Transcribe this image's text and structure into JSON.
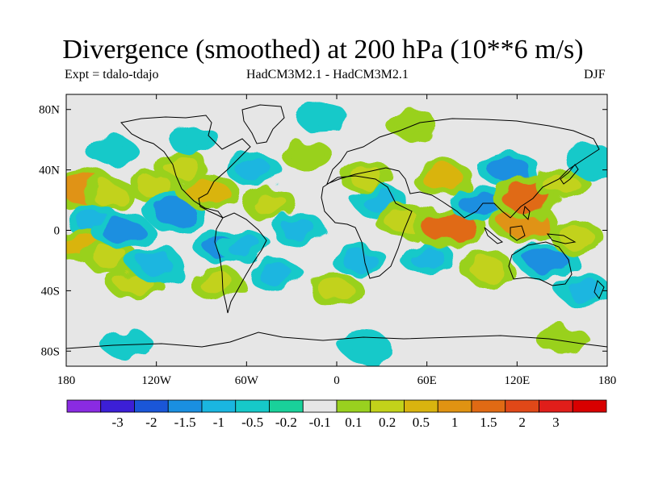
{
  "title": "Divergence (smoothed) at 200 hPa (10**6 m/s)",
  "subtitle_left": "Expt = tdalo-tdajo",
  "subtitle_center": "HadCM3M2.1 - HadCM3M2.1",
  "subtitle_right": "DJF",
  "map": {
    "projection": "cylindrical equidistant",
    "lon_range": [
      -180,
      180
    ],
    "lat_range": [
      -90,
      90
    ],
    "background_color": "#e6e6e6",
    "lat_ticks": [
      {
        "value": 80,
        "label": "80N"
      },
      {
        "value": 40,
        "label": "40N"
      },
      {
        "value": 0,
        "label": "0"
      },
      {
        "value": -40,
        "label": "40S"
      },
      {
        "value": -80,
        "label": "80S"
      }
    ],
    "lon_ticks": [
      {
        "value": -180,
        "label": "180"
      },
      {
        "value": -120,
        "label": "120W"
      },
      {
        "value": -60,
        "label": "60W"
      },
      {
        "value": 0,
        "label": "0"
      },
      {
        "value": 60,
        "label": "60E"
      },
      {
        "value": 120,
        "label": "120E"
      },
      {
        "value": 180,
        "label": "180"
      }
    ],
    "fields": [
      {
        "lon": -167,
        "lat": 27,
        "value": 1.5
      },
      {
        "lon": -152,
        "lat": 24,
        "value": 0.5
      },
      {
        "lon": -163,
        "lat": 7,
        "value": -0.5
      },
      {
        "lon": -150,
        "lat": 53,
        "value": -0.2
      },
      {
        "lon": -170,
        "lat": -10,
        "value": 1
      },
      {
        "lon": -150,
        "lat": -18,
        "value": 0.5
      },
      {
        "lon": -143,
        "lat": 0,
        "value": -1
      },
      {
        "lon": -135,
        "lat": -35,
        "value": 0.5
      },
      {
        "lon": -120,
        "lat": -22,
        "value": -0.5
      },
      {
        "lon": -120,
        "lat": 28,
        "value": 0.5
      },
      {
        "lon": -108,
        "lat": 12,
        "value": -1
      },
      {
        "lon": -103,
        "lat": 42,
        "value": 0.5
      },
      {
        "lon": -95,
        "lat": 60,
        "value": -0.2
      },
      {
        "lon": -85,
        "lat": 25,
        "value": 1
      },
      {
        "lon": -75,
        "lat": -10,
        "value": -1
      },
      {
        "lon": -62,
        "lat": -10,
        "value": -0.5
      },
      {
        "lon": -80,
        "lat": -35,
        "value": 0.5
      },
      {
        "lon": -55,
        "lat": 40,
        "value": -0.5
      },
      {
        "lon": -45,
        "lat": 18,
        "value": 0.5
      },
      {
        "lon": -40,
        "lat": -30,
        "value": -0.5
      },
      {
        "lon": -20,
        "lat": 50,
        "value": 0.2
      },
      {
        "lon": -25,
        "lat": 0,
        "value": -0.5
      },
      {
        "lon": 0,
        "lat": -40,
        "value": 0.5
      },
      {
        "lon": 20,
        "lat": 35,
        "value": 0.5
      },
      {
        "lon": 15,
        "lat": -20,
        "value": -0.5
      },
      {
        "lon": 30,
        "lat": 18,
        "value": -0.5
      },
      {
        "lon": 45,
        "lat": 5,
        "value": 0.5
      },
      {
        "lon": 60,
        "lat": -18,
        "value": -0.5
      },
      {
        "lon": 70,
        "lat": 35,
        "value": 1
      },
      {
        "lon": 75,
        "lat": 2,
        "value": 2
      },
      {
        "lon": 95,
        "lat": 18,
        "value": -1
      },
      {
        "lon": 100,
        "lat": -25,
        "value": 0.5
      },
      {
        "lon": 115,
        "lat": 40,
        "value": -1
      },
      {
        "lon": 125,
        "lat": 5,
        "value": 1.5
      },
      {
        "lon": 128,
        "lat": 22,
        "value": 2
      },
      {
        "lon": 140,
        "lat": -20,
        "value": -1
      },
      {
        "lon": 150,
        "lat": 30,
        "value": 0.5
      },
      {
        "lon": 160,
        "lat": -5,
        "value": 0.5
      },
      {
        "lon": 165,
        "lat": -40,
        "value": -0.5
      },
      {
        "lon": 170,
        "lat": 45,
        "value": -0.2
      },
      {
        "lon": -10,
        "lat": 75,
        "value": -0.2
      },
      {
        "lon": 50,
        "lat": 70,
        "value": 0.2
      },
      {
        "lon": -140,
        "lat": -75,
        "value": -0.2
      },
      {
        "lon": 20,
        "lat": -78,
        "value": -0.2
      },
      {
        "lon": 150,
        "lat": -72,
        "value": 0.2
      }
    ]
  },
  "colorbar": {
    "colors": [
      "#8a2be2",
      "#3c1fd6",
      "#1a56d8",
      "#1a8fe0",
      "#1ab6e0",
      "#16c9c9",
      "#19d19a",
      "#e6e6e6",
      "#99d11f",
      "#c2d21a",
      "#d9b40f",
      "#e09312",
      "#e06a14",
      "#e04818",
      "#e01e1a",
      "#d80000"
    ],
    "labels": [
      "-3",
      "-2",
      "-1.5",
      "-1",
      "-0.5",
      "-0.2",
      "-0.1",
      "0.1",
      "0.2",
      "0.5",
      "1",
      "1.5",
      "2",
      "3"
    ]
  }
}
